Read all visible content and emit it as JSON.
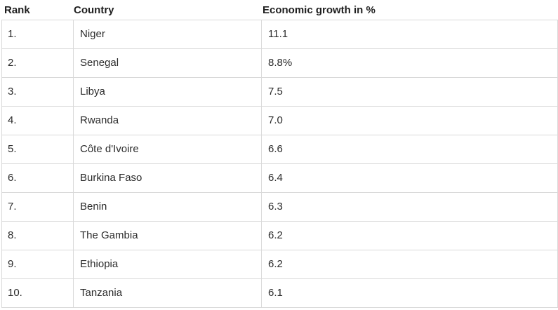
{
  "table": {
    "headers": {
      "rank": "Rank",
      "country": "Country",
      "growth": "Economic growth in %"
    },
    "rows": [
      {
        "rank": "1.",
        "country": "Niger",
        "growth": "11.1"
      },
      {
        "rank": "2.",
        "country": "Senegal",
        "growth": "8.8%"
      },
      {
        "rank": "3.",
        "country": "Libya",
        "growth": "7.5"
      },
      {
        "rank": "4.",
        "country": "Rwanda",
        "growth": "7.0"
      },
      {
        "rank": "5.",
        "country": "Côte d'Ivoire",
        "growth": "6.6"
      },
      {
        "rank": "6.",
        "country": "Burkina Faso",
        "growth": "6.4"
      },
      {
        "rank": "7.",
        "country": "Benin",
        "growth": "6.3"
      },
      {
        "rank": "8.",
        "country": "The Gambia",
        "growth": "6.2"
      },
      {
        "rank": "9.",
        "country": "Ethiopia",
        "growth": "6.2"
      },
      {
        "rank": "10.",
        "country": "Tanzania",
        "growth": "6.1"
      }
    ]
  },
  "colors": {
    "text": "#2b2b2b",
    "border": "#d9d9d9",
    "background": "#ffffff"
  }
}
